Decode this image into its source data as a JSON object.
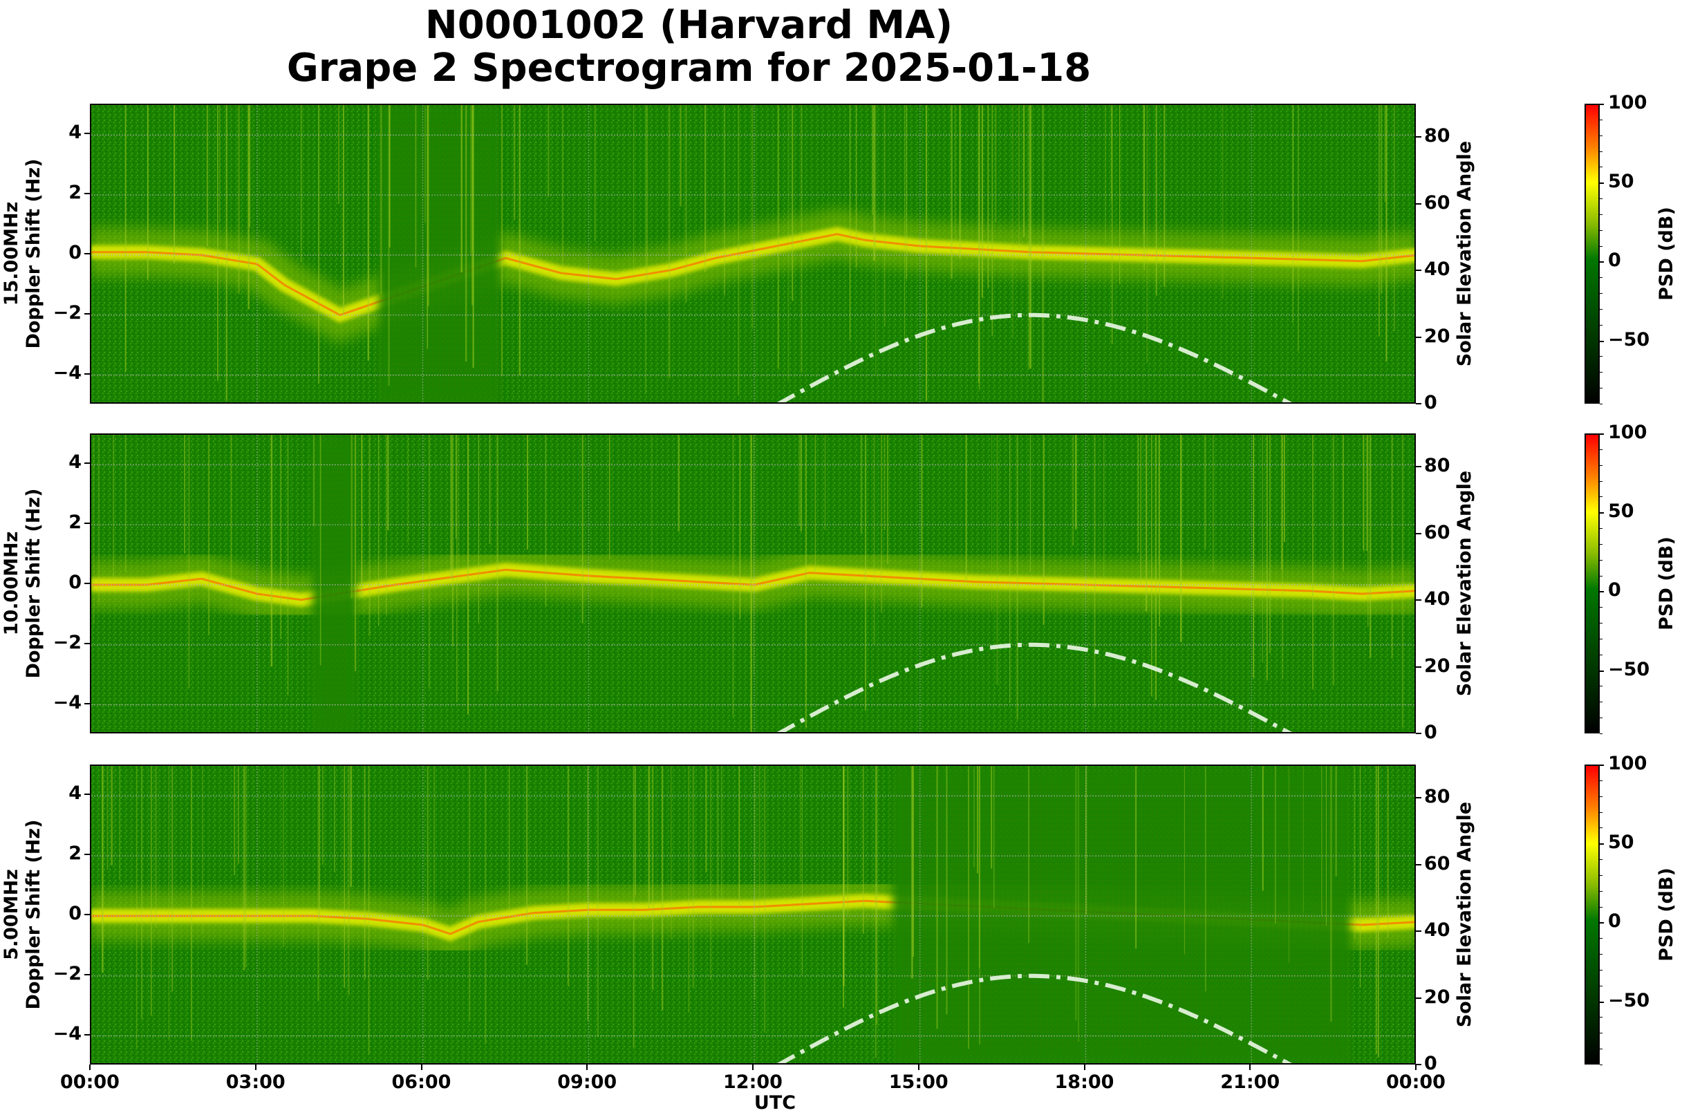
{
  "title": {
    "line1": "N0001002 (Harvard MA)",
    "line2": "Grape 2 Spectrogram for 2025-01-18"
  },
  "x_axis": {
    "label": "UTC",
    "ticks": [
      "00:00",
      "03:00",
      "06:00",
      "09:00",
      "12:00",
      "15:00",
      "18:00",
      "21:00",
      "00:00"
    ]
  },
  "left_axis_ticks": [
    "4",
    "2",
    "0",
    "−2",
    "−4"
  ],
  "right_axis": {
    "label": "Solar Elevation Angle",
    "ticks": [
      "80",
      "60",
      "40",
      "20",
      "0"
    ]
  },
  "colorbar": {
    "label": "PSD (dB)",
    "ticks": [
      "100",
      "50",
      "0",
      "−50"
    ]
  },
  "panels": [
    {
      "freq_label": "15.00MHz",
      "ylabel": "Doppler Shift (Hz)"
    },
    {
      "freq_label": "10.00MHz",
      "ylabel": "Doppler Shift (Hz)"
    },
    {
      "freq_label": "5.00MHz",
      "ylabel": "Doppler Shift (Hz)"
    }
  ],
  "colors": {
    "background_green": "#1f8a00",
    "trace_yellow": "#f0f000",
    "trace_red": "#ff5a00",
    "solar_curve": "#d8ecd0"
  },
  "chart_data": {
    "type": "heatmap",
    "title": "N0001002 (Harvard MA) Grape 2 Spectrogram for 2025-01-18",
    "xlabel": "UTC",
    "x_range": [
      "00:00",
      "24:00"
    ],
    "x_ticks": [
      "00:00",
      "03:00",
      "06:00",
      "09:00",
      "12:00",
      "15:00",
      "18:00",
      "21:00",
      "00:00"
    ],
    "grid": true,
    "subplots": [
      {
        "frequency": "15.00MHz",
        "ylabel": "Doppler Shift (Hz)",
        "ylim": [
          -5,
          5
        ],
        "yticks": [
          -4,
          -2,
          0,
          2,
          4
        ],
        "y2label": "Solar Elevation Angle",
        "y2lim": [
          0,
          90
        ],
        "y2ticks": [
          0,
          20,
          40,
          60,
          80
        ],
        "colorbar": {
          "label": "PSD (dB)",
          "range": [
            -90,
            100
          ],
          "ticks": [
            -50,
            0,
            50,
            100
          ]
        },
        "doppler_trace_hz": {
          "x_hours": [
            0,
            1,
            2,
            3,
            3.5,
            4.5,
            7.5,
            8.5,
            9.5,
            10.5,
            11.3,
            13.5,
            14,
            15,
            17,
            19,
            21,
            23,
            24
          ],
          "y": [
            0.1,
            0.1,
            0.0,
            -0.3,
            -1.0,
            -2.0,
            -0.1,
            -0.6,
            -0.8,
            -0.5,
            -0.1,
            0.7,
            0.5,
            0.3,
            0.1,
            0.0,
            -0.1,
            -0.2,
            0.0
          ]
        }
      },
      {
        "frequency": "10.00MHz",
        "ylabel": "Doppler Shift (Hz)",
        "ylim": [
          -5,
          5
        ],
        "yticks": [
          -4,
          -2,
          0,
          2,
          4
        ],
        "y2label": "Solar Elevation Angle",
        "y2lim": [
          0,
          90
        ],
        "y2ticks": [
          0,
          20,
          40,
          60,
          80
        ],
        "colorbar": {
          "label": "PSD (dB)",
          "range": [
            -90,
            100
          ],
          "ticks": [
            -50,
            0,
            50,
            100
          ]
        },
        "doppler_trace_hz": {
          "x_hours": [
            0,
            1,
            2,
            3,
            3.8,
            5.5,
            7.5,
            9,
            10,
            11,
            12,
            13,
            14,
            16,
            18,
            20,
            22,
            23,
            24
          ],
          "y": [
            0.0,
            0.0,
            0.2,
            -0.3,
            -0.5,
            0.0,
            0.5,
            0.3,
            0.2,
            0.1,
            0.0,
            0.4,
            0.3,
            0.1,
            0.0,
            -0.1,
            -0.2,
            -0.3,
            -0.2
          ]
        }
      },
      {
        "frequency": "5.00MHz",
        "ylabel": "Doppler Shift (Hz)",
        "ylim": [
          -5,
          5
        ],
        "yticks": [
          -4,
          -2,
          0,
          2,
          4
        ],
        "y2label": "Solar Elevation Angle",
        "y2lim": [
          0,
          90
        ],
        "y2ticks": [
          0,
          20,
          40,
          60,
          80
        ],
        "colorbar": {
          "label": "PSD (dB)",
          "range": [
            -90,
            100
          ],
          "ticks": [
            -50,
            0,
            50,
            100
          ]
        },
        "doppler_trace_hz": {
          "x_hours": [
            0,
            2,
            4,
            5,
            6,
            6.5,
            7,
            8,
            9,
            10,
            11,
            12,
            13,
            14,
            23,
            24
          ],
          "y": [
            0.0,
            0.0,
            0.0,
            -0.1,
            -0.3,
            -0.6,
            -0.2,
            0.1,
            0.2,
            0.2,
            0.3,
            0.3,
            0.4,
            0.5,
            -0.3,
            -0.2
          ]
        }
      }
    ],
    "solar_elevation_deg": {
      "x_hours": [
        12.4,
        13,
        14,
        15,
        16,
        17,
        18,
        19,
        20,
        21,
        21.75
      ],
      "y": [
        0,
        5,
        13,
        20,
        25,
        27,
        25.5,
        21,
        14,
        6,
        0
      ],
      "style": "dash-dot",
      "color": "#d8ecd0"
    }
  }
}
